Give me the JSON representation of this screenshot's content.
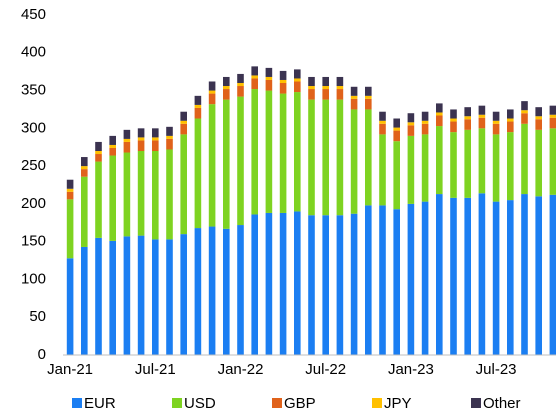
{
  "chart_data": {
    "type": "stacked_bar",
    "categories": [
      "Jan-21",
      null,
      null,
      null,
      null,
      null,
      "Jul-21",
      null,
      null,
      null,
      null,
      null,
      "Jan-22",
      null,
      null,
      null,
      null,
      null,
      "Jul-22",
      null,
      null,
      null,
      null,
      null,
      "Jan-23",
      null,
      null,
      null,
      null,
      null,
      "Jul-23",
      null,
      null,
      null,
      null
    ],
    "series": [
      {
        "name": "EUR",
        "color": "#1b7ef2",
        "values": [
          128,
          143,
          155,
          151,
          157,
          158,
          153,
          153,
          160,
          168,
          170,
          167,
          172,
          186,
          188,
          188,
          190,
          185,
          185,
          185,
          187,
          198,
          198,
          193,
          200,
          203,
          213,
          208,
          208,
          214,
          203,
          205,
          213,
          210,
          212
        ]
      },
      {
        "name": "USD",
        "color": "#7ed321",
        "values": [
          78,
          93,
          101,
          113,
          111,
          112,
          117,
          119,
          132,
          145,
          162,
          171,
          170,
          166,
          162,
          158,
          158,
          153,
          153,
          153,
          138,
          127,
          94,
          90,
          90,
          89,
          90,
          87,
          90,
          86,
          89,
          90,
          93,
          88,
          88
        ]
      },
      {
        "name": "GBP",
        "color": "#e0621b",
        "values": [
          10,
          10,
          10,
          10,
          14,
          14,
          14,
          14,
          14,
          14,
          14,
          14,
          14,
          14,
          14,
          14,
          14,
          14,
          14,
          14,
          14,
          14,
          14,
          14,
          14,
          14,
          14,
          14,
          14,
          14,
          14,
          14,
          14,
          14,
          14
        ]
      },
      {
        "name": "JPY",
        "color": "#ffc000",
        "values": [
          4,
          4,
          4,
          4,
          4,
          4,
          4,
          4,
          4,
          4,
          4,
          4,
          4,
          4,
          4,
          4,
          4,
          4,
          4,
          4,
          4,
          4,
          4,
          4,
          4,
          4,
          4,
          4,
          4,
          4,
          4,
          4,
          4,
          4,
          4
        ]
      },
      {
        "name": "Other",
        "color": "#3b3350",
        "values": [
          12,
          12,
          12,
          12,
          12,
          12,
          12,
          12,
          12,
          12,
          12,
          12,
          12,
          12,
          12,
          12,
          12,
          12,
          12,
          12,
          12,
          12,
          12,
          12,
          12,
          12,
          12,
          12,
          12,
          12,
          12,
          12,
          12,
          12,
          12
        ]
      }
    ],
    "ylim": [
      0,
      450
    ],
    "yticks": [
      0,
      50,
      100,
      150,
      200,
      250,
      300,
      350,
      400,
      450
    ],
    "legend": "bottom"
  }
}
